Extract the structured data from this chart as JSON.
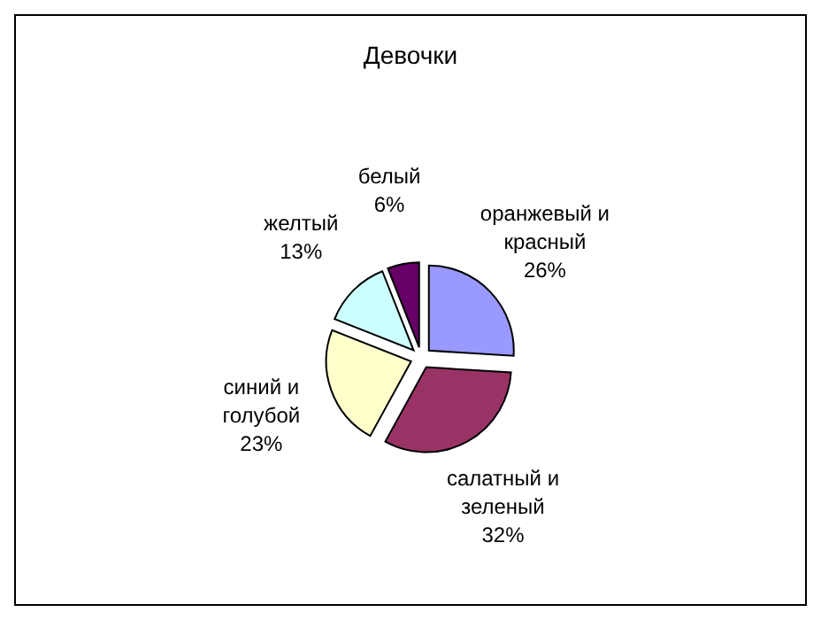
{
  "chart_data": {
    "type": "pie",
    "title": "Девочки",
    "categories": [
      "оранжевый и красный",
      "салатный и зеленый",
      "синий и голубой",
      "желтый",
      "белый"
    ],
    "values": [
      26,
      32,
      23,
      13,
      6
    ],
    "colors": [
      "#9999ff",
      "#993366",
      "#ffffcc",
      "#ccffff",
      "#660066"
    ],
    "value_labels": [
      "26%",
      "32%",
      "23%",
      "13%",
      "6%"
    ]
  }
}
